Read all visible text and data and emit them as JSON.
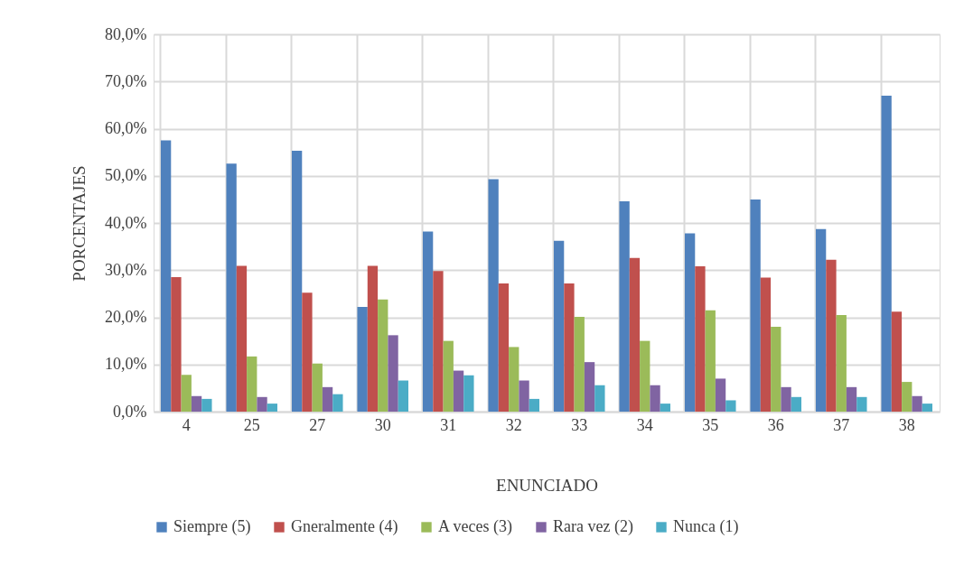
{
  "chart_data": {
    "type": "bar",
    "xlabel": "ENUNCIADO",
    "ylabel": "PORCENTAJES",
    "categories": [
      "4",
      "25",
      "27",
      "30",
      "31",
      "32",
      "33",
      "34",
      "35",
      "36",
      "37",
      "38"
    ],
    "series": [
      {
        "name": "Siempre (5)",
        "color": "#4f81bd",
        "values": [
          57.5,
          52.6,
          55.3,
          22.2,
          38.2,
          49.3,
          36.2,
          44.6,
          37.8,
          45.0,
          38.7,
          67.0
        ]
      },
      {
        "name": "Gneralmente (4)",
        "color": "#c0504d",
        "values": [
          28.5,
          30.9,
          25.2,
          30.9,
          29.8,
          27.2,
          27.2,
          32.6,
          30.8,
          28.4,
          32.2,
          21.2
        ]
      },
      {
        "name": "A veces (3)",
        "color": "#9bbb59",
        "values": [
          7.8,
          11.7,
          10.2,
          23.8,
          15.0,
          13.7,
          20.1,
          15.0,
          21.5,
          18.0,
          20.5,
          6.3
        ]
      },
      {
        "name": "Rara vez (2)",
        "color": "#8064a2",
        "values": [
          3.3,
          3.1,
          5.2,
          16.2,
          8.7,
          6.6,
          10.5,
          5.6,
          7.0,
          5.2,
          5.2,
          3.3
        ]
      },
      {
        "name": "Nunca (1)",
        "color": "#4bacc6",
        "values": [
          2.7,
          1.7,
          3.7,
          6.6,
          7.7,
          2.7,
          5.6,
          1.7,
          2.4,
          3.1,
          3.1,
          1.7
        ]
      }
    ],
    "ylim": [
      0,
      80
    ],
    "yticks": [
      {
        "value": 0,
        "label": "0,0%"
      },
      {
        "value": 10,
        "label": "10,0%"
      },
      {
        "value": 20,
        "label": "20,0%"
      },
      {
        "value": 30,
        "label": "30,0%"
      },
      {
        "value": 40,
        "label": "40,0%"
      },
      {
        "value": 50,
        "label": "50,0%"
      },
      {
        "value": 60,
        "label": "60,0%"
      },
      {
        "value": 70,
        "label": "70,0%"
      },
      {
        "value": 80,
        "label": "80,0%"
      }
    ],
    "grid": true,
    "legend": "bottom"
  }
}
